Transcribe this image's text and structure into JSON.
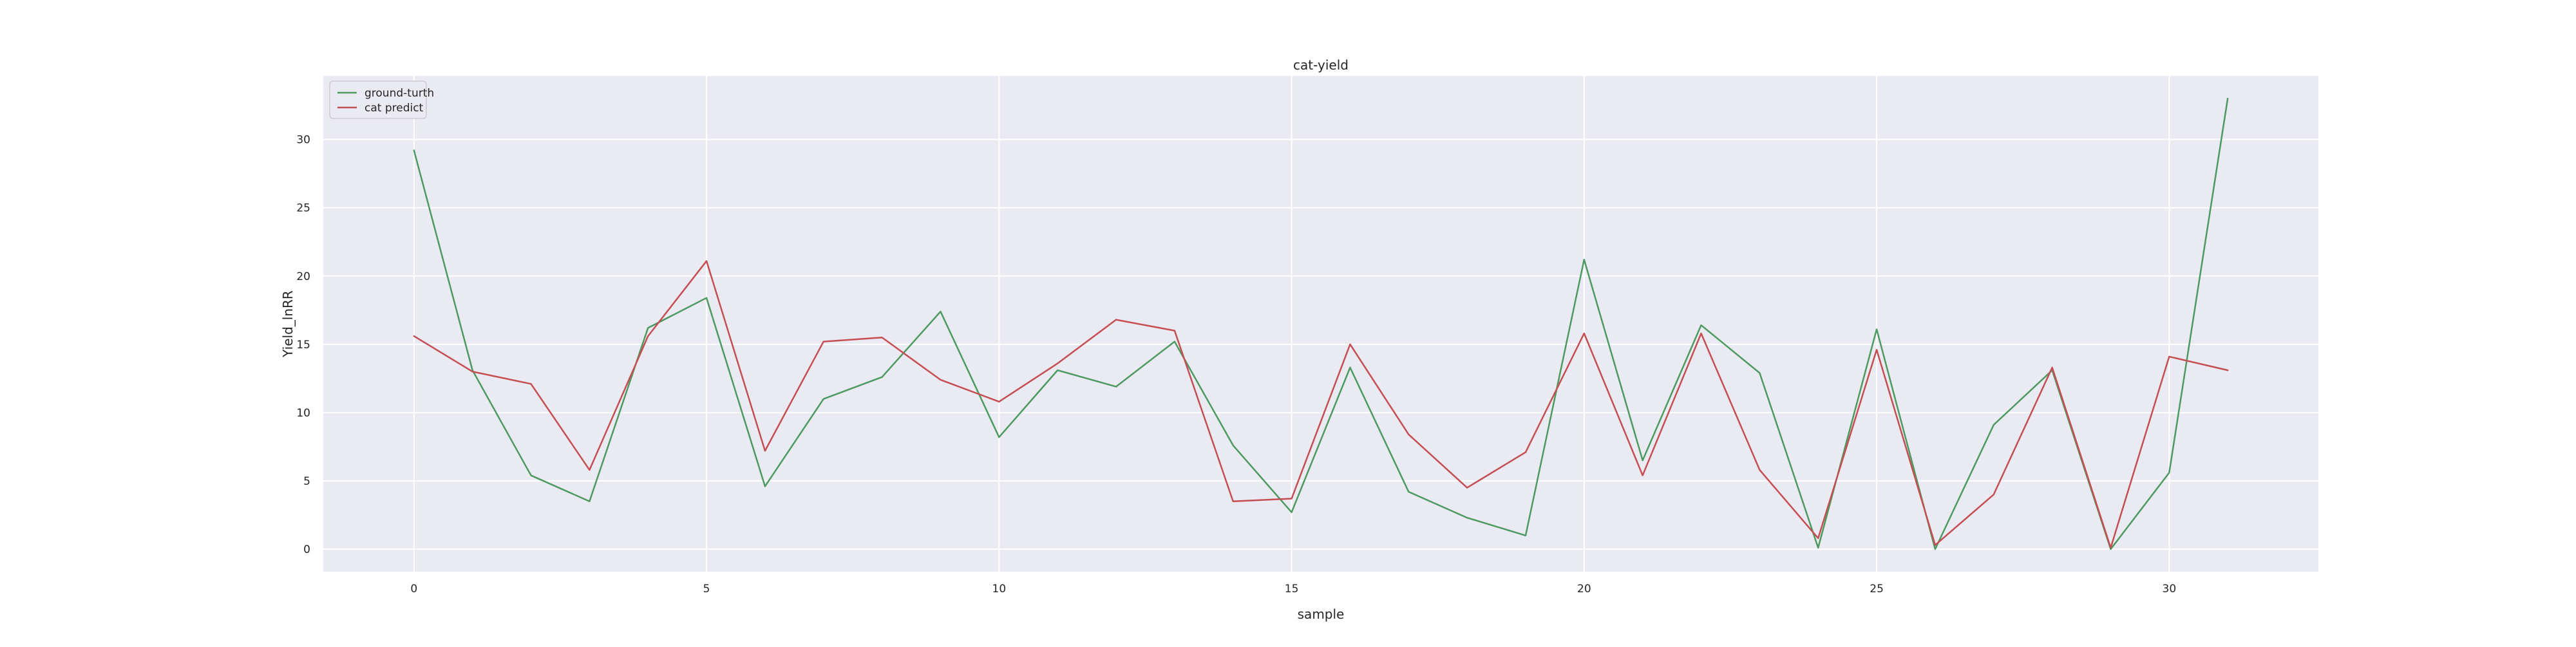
{
  "chart_data": {
    "type": "line",
    "title": "cat-yield",
    "xlabel": "sample",
    "ylabel": "Yield_lnRR",
    "x": [
      0,
      1,
      2,
      3,
      4,
      5,
      6,
      7,
      8,
      9,
      10,
      11,
      12,
      13,
      14,
      15,
      16,
      17,
      18,
      19,
      20,
      21,
      22,
      23,
      24,
      25,
      26,
      27,
      28,
      29,
      30,
      31
    ],
    "series": [
      {
        "name": "ground-turth",
        "color": "#4c9a5f",
        "values": [
          29.2,
          13.1,
          5.4,
          3.5,
          16.2,
          18.4,
          4.6,
          11.0,
          12.6,
          17.4,
          8.2,
          13.1,
          11.9,
          15.2,
          7.6,
          2.7,
          13.3,
          4.2,
          2.3,
          1.0,
          21.2,
          6.5,
          16.4,
          12.9,
          0.1,
          16.1,
          0.0,
          9.1,
          13.1,
          0.0,
          5.6,
          33.0
        ]
      },
      {
        "name": "cat predict",
        "color": "#c44e52",
        "values": [
          15.6,
          13.0,
          12.1,
          5.8,
          15.6,
          21.1,
          7.2,
          15.2,
          15.5,
          12.4,
          10.8,
          13.6,
          16.8,
          16.0,
          3.5,
          3.7,
          15.0,
          8.4,
          4.5,
          7.1,
          15.8,
          5.4,
          15.8,
          5.8,
          0.8,
          14.6,
          0.3,
          4.0,
          13.3,
          0.1,
          14.1,
          13.1
        ]
      }
    ],
    "xticks": [
      0,
      5,
      10,
      15,
      20,
      25,
      30
    ],
    "yticks": [
      0,
      5,
      10,
      15,
      20,
      25,
      30
    ],
    "xlim": [
      -1.55,
      32.55
    ],
    "ylim": [
      -1.65,
      34.65
    ],
    "grid": true,
    "legend_position": "top-left",
    "plot_background": "#eaeaf2",
    "grid_color": "#ffffff"
  }
}
